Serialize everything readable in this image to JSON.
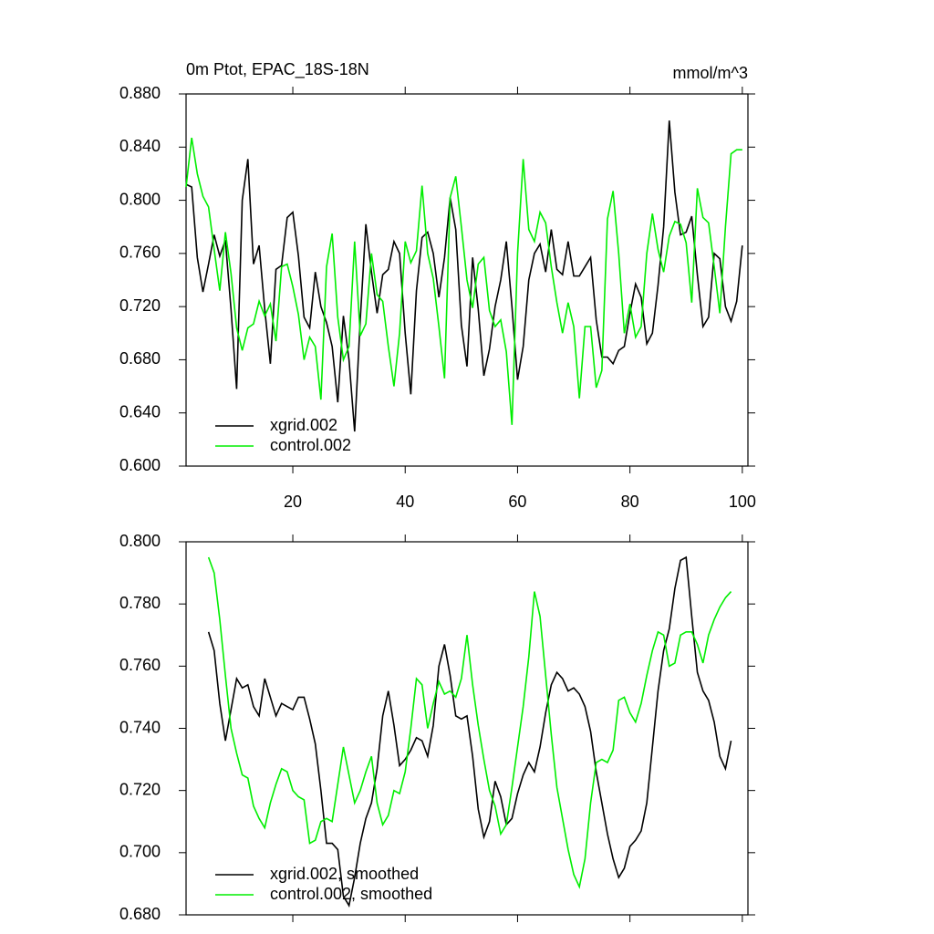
{
  "chart_data": [
    {
      "type": "line",
      "title": "0m Ptot, EPAC_18S-18N",
      "subtitle": "mmol/m^3",
      "x": [
        1,
        2,
        3,
        4,
        5,
        6,
        7,
        8,
        9,
        10,
        11,
        12,
        13,
        14,
        15,
        16,
        17,
        18,
        19,
        20,
        21,
        22,
        23,
        24,
        25,
        26,
        27,
        28,
        29,
        30,
        31,
        32,
        33,
        34,
        35,
        36,
        37,
        38,
        39,
        40,
        41,
        42,
        43,
        44,
        45,
        46,
        47,
        48,
        49,
        50,
        51,
        52,
        53,
        54,
        55,
        56,
        57,
        58,
        59,
        60,
        61,
        62,
        63,
        64,
        65,
        66,
        67,
        68,
        69,
        70,
        71,
        72,
        73,
        74,
        75,
        76,
        77,
        78,
        79,
        80,
        81,
        82,
        83,
        84,
        85,
        86,
        87,
        88,
        89,
        90,
        91,
        92,
        93,
        94,
        95,
        96,
        97,
        98,
        99,
        100
      ],
      "series": [
        {
          "name": "xgrid.002",
          "color": "#000000",
          "values": [
            0.812,
            0.81,
            0.757,
            0.731,
            0.752,
            0.774,
            0.758,
            0.77,
            0.718,
            0.658,
            0.8,
            0.831,
            0.752,
            0.766,
            0.718,
            0.677,
            0.748,
            0.751,
            0.787,
            0.791,
            0.758,
            0.712,
            0.704,
            0.746,
            0.72,
            0.708,
            0.69,
            0.648,
            0.713,
            0.68,
            0.626,
            0.71,
            0.782,
            0.746,
            0.715,
            0.744,
            0.748,
            0.769,
            0.76,
            0.7,
            0.654,
            0.732,
            0.772,
            0.776,
            0.76,
            0.727,
            0.757,
            0.802,
            0.778,
            0.706,
            0.675,
            0.757,
            0.718,
            0.668,
            0.688,
            0.72,
            0.74,
            0.769,
            0.72,
            0.665,
            0.69,
            0.74,
            0.76,
            0.767,
            0.746,
            0.778,
            0.748,
            0.744,
            0.769,
            0.743,
            0.743,
            0.75,
            0.757,
            0.71,
            0.682,
            0.682,
            0.677,
            0.687,
            0.69,
            0.715,
            0.737,
            0.727,
            0.692,
            0.7,
            0.736,
            0.78,
            0.86,
            0.806,
            0.774,
            0.776,
            0.788,
            0.744,
            0.705,
            0.712,
            0.76,
            0.756,
            0.72,
            0.709,
            0.724,
            0.766
          ]
        },
        {
          "name": "control.002",
          "color": "#00ee00",
          "values": [
            0.81,
            0.847,
            0.82,
            0.803,
            0.795,
            0.763,
            0.732,
            0.776,
            0.745,
            0.704,
            0.687,
            0.704,
            0.707,
            0.724,
            0.713,
            0.722,
            0.694,
            0.75,
            0.752,
            0.735,
            0.714,
            0.68,
            0.697,
            0.69,
            0.65,
            0.75,
            0.775,
            0.712,
            0.68,
            0.69,
            0.769,
            0.698,
            0.707,
            0.76,
            0.729,
            0.724,
            0.69,
            0.66,
            0.7,
            0.769,
            0.753,
            0.762,
            0.811,
            0.76,
            0.741,
            0.705,
            0.666,
            0.802,
            0.818,
            0.78,
            0.74,
            0.719,
            0.752,
            0.757,
            0.717,
            0.705,
            0.71,
            0.686,
            0.631,
            0.76,
            0.831,
            0.778,
            0.769,
            0.791,
            0.783,
            0.75,
            0.723,
            0.7,
            0.723,
            0.705,
            0.651,
            0.705,
            0.705,
            0.659,
            0.672,
            0.786,
            0.807,
            0.76,
            0.7,
            0.722,
            0.697,
            0.705,
            0.76,
            0.79,
            0.763,
            0.746,
            0.773,
            0.784,
            0.782,
            0.768,
            0.723,
            0.809,
            0.787,
            0.783,
            0.75,
            0.715,
            0.78,
            0.835,
            0.838,
            0.838
          ]
        }
      ],
      "xlim": [
        1,
        101
      ],
      "xticks": [
        20,
        40,
        60,
        80,
        100
      ],
      "ylim": [
        0.6,
        0.88
      ],
      "yticks": [
        {
          "value": 0.6,
          "label": "0.600"
        },
        {
          "value": 0.64,
          "label": "0.640"
        },
        {
          "value": 0.68,
          "label": "0.680"
        },
        {
          "value": 0.72,
          "label": "0.720"
        },
        {
          "value": 0.76,
          "label": "0.760"
        },
        {
          "value": 0.8,
          "label": "0.800"
        },
        {
          "value": 0.84,
          "label": "0.840"
        },
        {
          "value": 0.88,
          "label": "0.880"
        }
      ],
      "grid": false,
      "legend": "lower left"
    },
    {
      "type": "line",
      "x": [
        5,
        6,
        7,
        8,
        9,
        10,
        11,
        12,
        13,
        14,
        15,
        16,
        17,
        18,
        19,
        20,
        21,
        22,
        23,
        24,
        25,
        26,
        27,
        28,
        29,
        30,
        31,
        32,
        33,
        34,
        35,
        36,
        37,
        38,
        39,
        40,
        41,
        42,
        43,
        44,
        45,
        46,
        47,
        48,
        49,
        50,
        51,
        52,
        53,
        54,
        55,
        56,
        57,
        58,
        59,
        60,
        61,
        62,
        63,
        64,
        65,
        66,
        67,
        68,
        69,
        70,
        71,
        72,
        73,
        74,
        75,
        76,
        77,
        78,
        79,
        80,
        81,
        82,
        83,
        84,
        85,
        86,
        87,
        88,
        89,
        90,
        91,
        92,
        93,
        94,
        95,
        96,
        97,
        98
      ],
      "series": [
        {
          "name": "xgrid.002, smoothed",
          "color": "#000000",
          "values": [
            0.771,
            0.765,
            0.748,
            0.736,
            0.746,
            0.756,
            0.753,
            0.754,
            0.747,
            0.744,
            0.756,
            0.75,
            0.744,
            0.748,
            0.747,
            0.746,
            0.75,
            0.75,
            0.743,
            0.735,
            0.72,
            0.703,
            0.703,
            0.701,
            0.686,
            0.683,
            0.692,
            0.703,
            0.711,
            0.716,
            0.727,
            0.744,
            0.752,
            0.741,
            0.728,
            0.73,
            0.733,
            0.737,
            0.736,
            0.731,
            0.741,
            0.76,
            0.767,
            0.757,
            0.744,
            0.743,
            0.744,
            0.731,
            0.714,
            0.705,
            0.71,
            0.723,
            0.718,
            0.709,
            0.711,
            0.719,
            0.725,
            0.729,
            0.726,
            0.734,
            0.745,
            0.754,
            0.758,
            0.756,
            0.752,
            0.753,
            0.751,
            0.747,
            0.739,
            0.726,
            0.716,
            0.706,
            0.698,
            0.692,
            0.695,
            0.702,
            0.704,
            0.707,
            0.716,
            0.734,
            0.752,
            0.765,
            0.772,
            0.785,
            0.794,
            0.795,
            0.776,
            0.758,
            0.752,
            0.749,
            0.742,
            0.731,
            0.727,
            0.736
          ]
        },
        {
          "name": "control.002, smoothed",
          "color": "#00ee00",
          "values": [
            0.795,
            0.79,
            0.775,
            0.757,
            0.74,
            0.732,
            0.725,
            0.724,
            0.715,
            0.711,
            0.708,
            0.716,
            0.722,
            0.727,
            0.726,
            0.72,
            0.718,
            0.717,
            0.703,
            0.704,
            0.71,
            0.711,
            0.71,
            0.722,
            0.734,
            0.725,
            0.716,
            0.72,
            0.726,
            0.731,
            0.716,
            0.709,
            0.712,
            0.72,
            0.719,
            0.726,
            0.74,
            0.756,
            0.754,
            0.74,
            0.748,
            0.755,
            0.751,
            0.752,
            0.75,
            0.756,
            0.77,
            0.754,
            0.741,
            0.73,
            0.72,
            0.715,
            0.706,
            0.709,
            0.721,
            0.734,
            0.747,
            0.763,
            0.784,
            0.776,
            0.757,
            0.738,
            0.721,
            0.711,
            0.701,
            0.693,
            0.689,
            0.698,
            0.716,
            0.729,
            0.73,
            0.729,
            0.733,
            0.749,
            0.75,
            0.745,
            0.742,
            0.748,
            0.757,
            0.765,
            0.771,
            0.77,
            0.76,
            0.761,
            0.77,
            0.771,
            0.771,
            0.767,
            0.761,
            0.77,
            0.775,
            0.779,
            0.782,
            0.784
          ]
        }
      ],
      "xlim": [
        1,
        101
      ],
      "xticks": [
        20,
        40,
        60,
        80,
        100
      ],
      "ylim": [
        0.68,
        0.8
      ],
      "yticks": [
        {
          "value": 0.68,
          "label": "0.680"
        },
        {
          "value": 0.7,
          "label": "0.700"
        },
        {
          "value": 0.72,
          "label": "0.720"
        },
        {
          "value": 0.74,
          "label": "0.740"
        },
        {
          "value": 0.76,
          "label": "0.760"
        },
        {
          "value": 0.78,
          "label": "0.780"
        },
        {
          "value": 0.8,
          "label": "0.800"
        }
      ],
      "grid": false,
      "legend": "lower left"
    }
  ]
}
